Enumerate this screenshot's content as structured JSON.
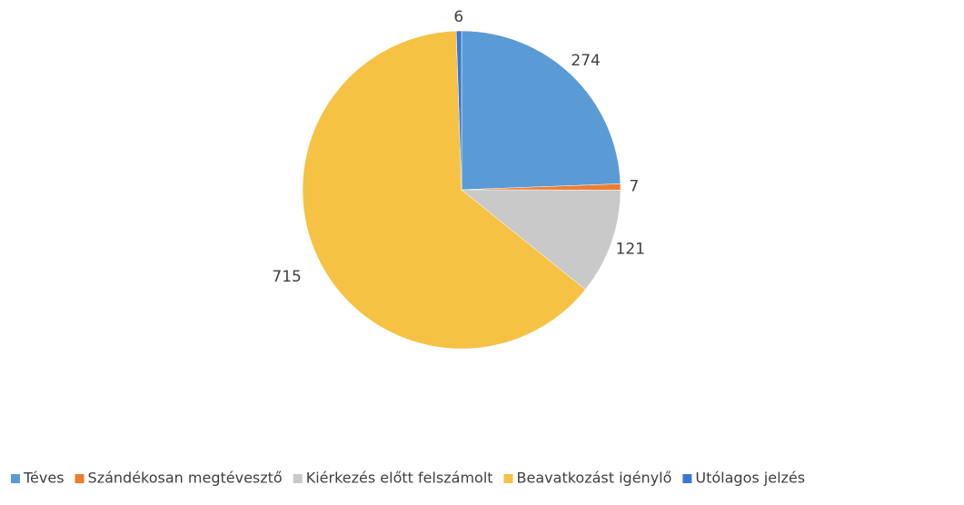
{
  "chart_data": {
    "type": "pie",
    "categories": [
      "Téves",
      "Szándékosan megtévesztő",
      "Kiérkezés előtt felszámolt",
      "Beavatkozást igénylő",
      "Utólagos jelzés"
    ],
    "values": [
      274,
      7,
      121,
      715,
      6
    ],
    "colors": [
      "#5b9bd5",
      "#ed7d31",
      "#c9c9c9",
      "#f6c244",
      "#3a78d0"
    ],
    "legend": "bottom"
  }
}
